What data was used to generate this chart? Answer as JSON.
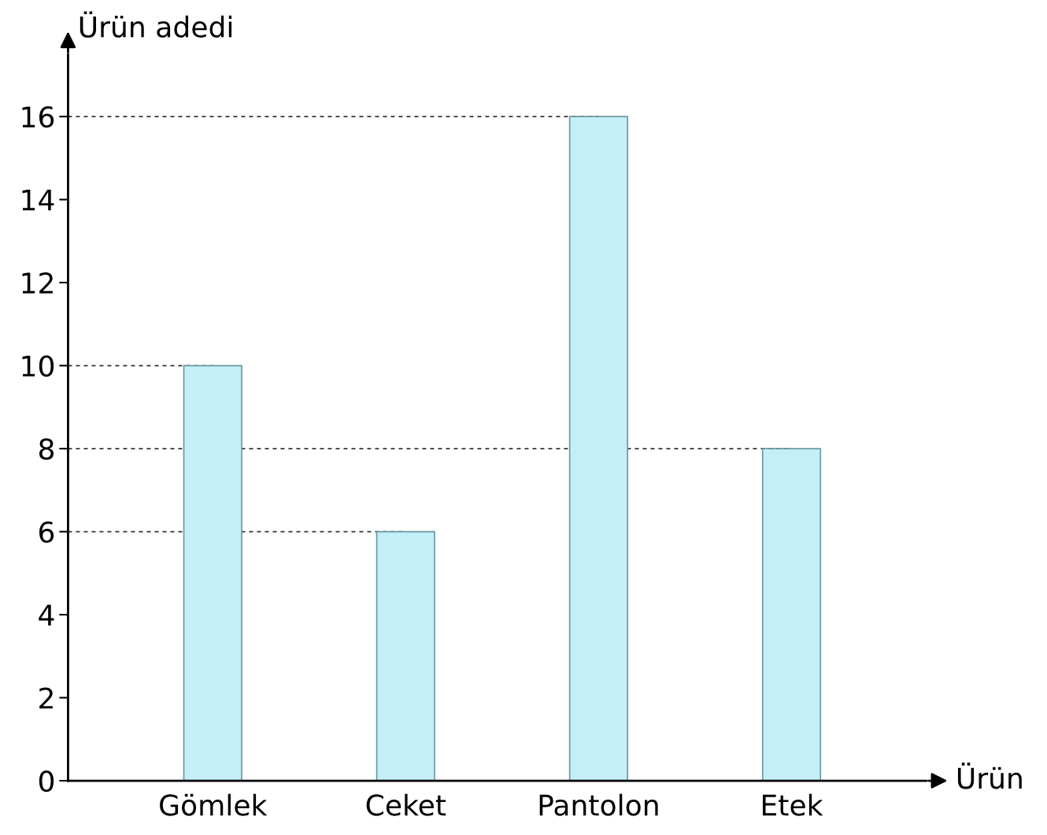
{
  "chart_data": {
    "type": "bar",
    "xlabel": "Ürün",
    "ylabel": "Ürün adedi",
    "categories": [
      "Gömlek",
      "Ceket",
      "Pantolon",
      "Etek"
    ],
    "values": [
      10,
      6,
      16,
      8
    ],
    "color": "#c4eef8",
    "ylim": [
      0,
      17.5
    ],
    "yticks": [
      0,
      2,
      4,
      6,
      8,
      10,
      12,
      14,
      16
    ],
    "grid": false,
    "ref_lines": [
      {
        "axis": "y",
        "value": 16,
        "line_style": "dashed",
        "color": "#333333"
      },
      {
        "axis": "y",
        "value": 10,
        "line_style": "dashed",
        "color": "#333333"
      },
      {
        "axis": "y",
        "value": 8,
        "line_style": "dashed",
        "color": "#333333"
      },
      {
        "axis": "y",
        "value": 6,
        "line_style": "dashed",
        "color": "#333333"
      }
    ]
  }
}
